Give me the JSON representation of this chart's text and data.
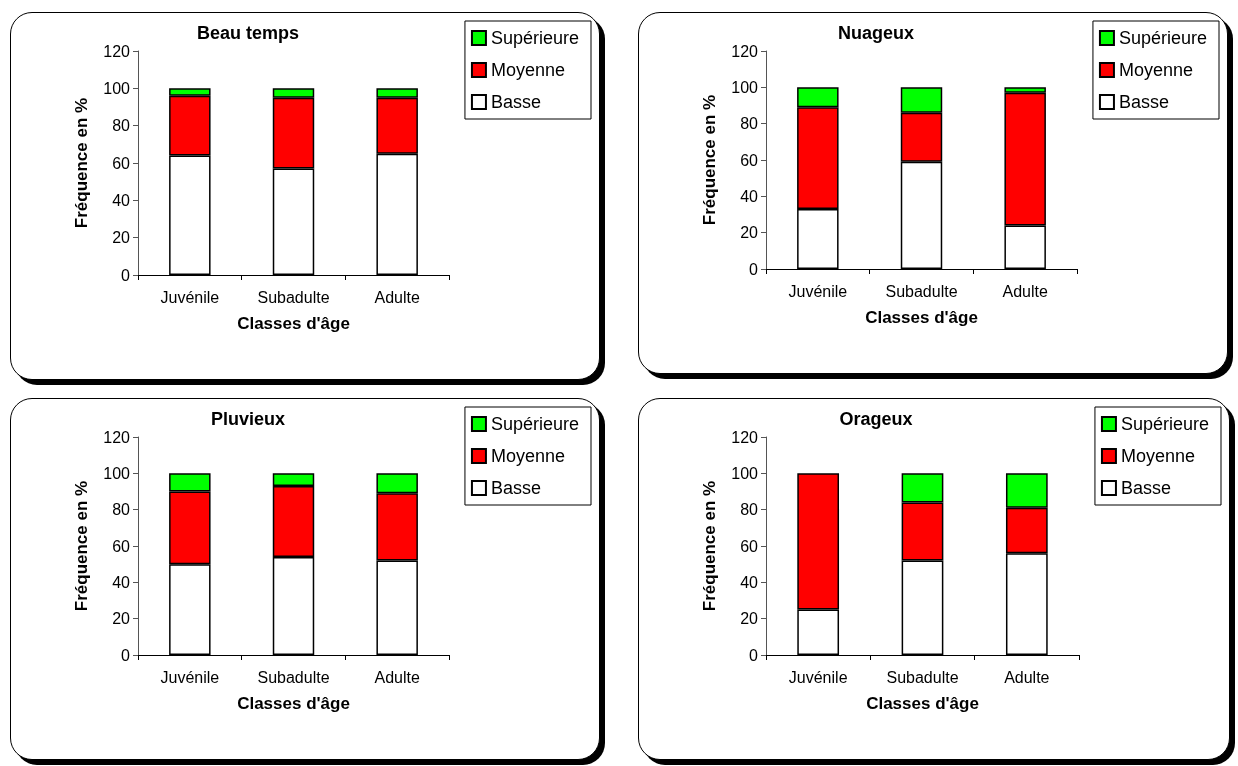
{
  "chart_data": [
    {
      "type": "bar",
      "stacked": true,
      "title": "Beau temps",
      "xlabel": "Classes d'âge",
      "ylabel": "Fréquence en %",
      "categories": [
        "Juvénile",
        "Subadulte",
        "Adulte"
      ],
      "ylim": [
        0,
        120
      ],
      "yticks": [
        0,
        20,
        40,
        60,
        80,
        100,
        120
      ],
      "grid": false,
      "legend": "top right",
      "series": [
        {
          "name": "Basse",
          "color": "#ffffff",
          "values": [
            64,
            57,
            65
          ]
        },
        {
          "name": "Moyenne",
          "color": "#ff0000",
          "values": [
            32,
            38,
            30
          ]
        },
        {
          "name": "Supérieure",
          "color": "#00ff00",
          "values": [
            4,
            5,
            5
          ]
        }
      ]
    },
    {
      "type": "bar",
      "stacked": true,
      "title": "Nuageux",
      "xlabel": "Classes d'âge",
      "ylabel": "Fréquence en %",
      "categories": [
        "Juvénile",
        "Subadulte",
        "Adulte"
      ],
      "ylim": [
        0,
        120
      ],
      "yticks": [
        0,
        20,
        40,
        60,
        80,
        100,
        120
      ],
      "grid": false,
      "legend": "top right",
      "series": [
        {
          "name": "Basse",
          "color": "#ffffff",
          "values": [
            33,
            59,
            24
          ]
        },
        {
          "name": "Moyenne",
          "color": "#ff0000",
          "values": [
            56,
            27,
            73
          ]
        },
        {
          "name": "Supérieure",
          "color": "#00ff00",
          "values": [
            11,
            14,
            3
          ]
        }
      ]
    },
    {
      "type": "bar",
      "stacked": true,
      "title": "Pluvieux",
      "xlabel": "Classes d'âge",
      "ylabel": "Fréquence en %",
      "categories": [
        "Juvénile",
        "Subadulte",
        "Adulte"
      ],
      "ylim": [
        0,
        120
      ],
      "yticks": [
        0,
        20,
        40,
        60,
        80,
        100,
        120
      ],
      "grid": false,
      "legend": "top right",
      "series": [
        {
          "name": "Basse",
          "color": "#ffffff",
          "values": [
            50,
            54,
            52
          ]
        },
        {
          "name": "Moyenne",
          "color": "#ff0000",
          "values": [
            40,
            39,
            37
          ]
        },
        {
          "name": "Supérieure",
          "color": "#00ff00",
          "values": [
            10,
            7,
            11
          ]
        }
      ]
    },
    {
      "type": "bar",
      "stacked": true,
      "title": "Orageux",
      "xlabel": "Classes d'âge",
      "ylabel": "Fréquence en %",
      "categories": [
        "Juvénile",
        "Subadulte",
        "Adulte"
      ],
      "ylim": [
        0,
        120
      ],
      "yticks": [
        0,
        20,
        40,
        60,
        80,
        100,
        120
      ],
      "grid": false,
      "legend": "top right",
      "series": [
        {
          "name": "Basse",
          "color": "#ffffff",
          "values": [
            25,
            52,
            56
          ]
        },
        {
          "name": "Moyenne",
          "color": "#ff0000",
          "values": [
            75,
            32,
            25
          ]
        },
        {
          "name": "Supérieure",
          "color": "#00ff00",
          "values": [
            0,
            16,
            19
          ]
        }
      ]
    }
  ]
}
